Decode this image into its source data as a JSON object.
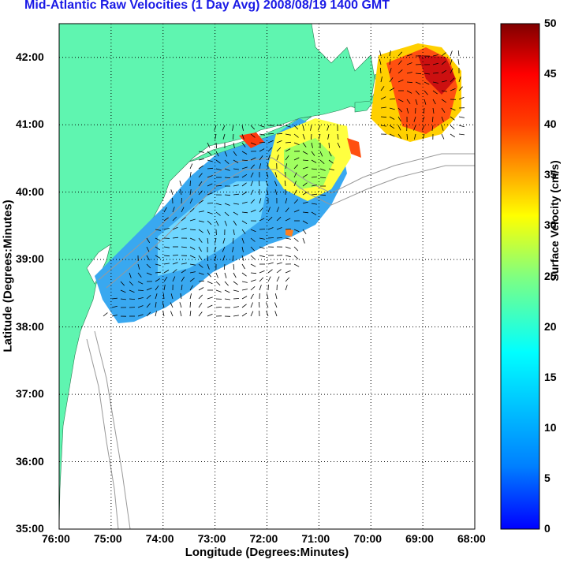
{
  "title": "Mid-Atlantic Raw Velocities (1 Day Avg) 2008/08/19 1400 GMT",
  "map": {
    "xlabel": "Longitude (Degrees:Minutes)",
    "ylabel": "Latitude (Degrees:Minutes)",
    "lon_ticks": [
      "76:00",
      "75:00",
      "74:00",
      "73:00",
      "72:00",
      "71:00",
      "70:00",
      "69:00",
      "68:00"
    ],
    "lat_ticks": [
      "35:00",
      "36:00",
      "37:00",
      "38:00",
      "39:00",
      "40:00",
      "41:00",
      "42:00"
    ],
    "lon_range": [
      -76,
      -68
    ],
    "lat_range": [
      35,
      42.5
    ],
    "land_color": "#5ff5b0",
    "grid": "dotted"
  },
  "colorbar": {
    "label": "Surface Velocity (cm/s)",
    "ticks": [
      "0",
      "5",
      "10",
      "15",
      "20",
      "25",
      "30",
      "35",
      "40",
      "45",
      "50"
    ],
    "range": [
      0,
      50
    ],
    "colormap": "jet"
  }
}
